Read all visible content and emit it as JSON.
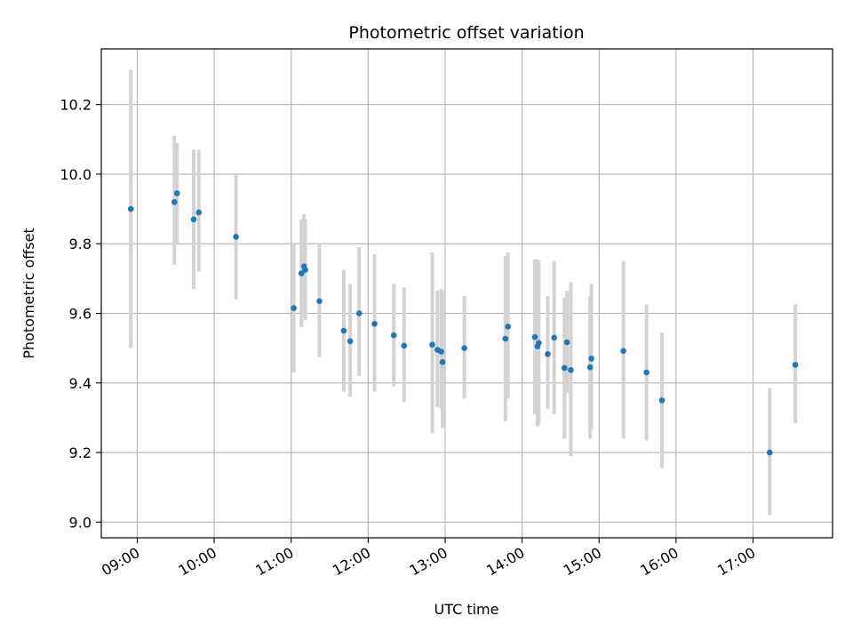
{
  "chart_data": {
    "type": "scatter",
    "title": "Photometric offset variation",
    "xlabel": "UTC time",
    "ylabel": "Photometric offset",
    "x_unit": "hours UTC",
    "xlim": [
      "08:32",
      "18:02"
    ],
    "ylim": [
      8.955,
      10.36
    ],
    "x_ticks": [
      "09:00",
      "10:00",
      "11:00",
      "12:00",
      "13:00",
      "14:00",
      "15:00",
      "16:00",
      "17:00"
    ],
    "y_ticks": [
      "9.0",
      "9.2",
      "9.4",
      "9.6",
      "9.8",
      "10.0",
      "10.2"
    ],
    "grid": true,
    "legend": "none",
    "colors": {
      "point": "#1f77b4",
      "error_bar": "#d3d3d3",
      "grid": "#b0b0b0"
    },
    "points": [
      {
        "time": "08:55",
        "value": 9.9,
        "err_low": 9.5,
        "err_high": 10.3
      },
      {
        "time": "09:29",
        "value": 9.92,
        "err_low": 9.74,
        "err_high": 10.11
      },
      {
        "time": "09:31",
        "value": 9.945,
        "err_low": 9.8,
        "err_high": 10.09
      },
      {
        "time": "09:44",
        "value": 9.87,
        "err_low": 9.67,
        "err_high": 10.07
      },
      {
        "time": "09:48",
        "value": 9.89,
        "err_low": 9.72,
        "err_high": 10.07
      },
      {
        "time": "10:17",
        "value": 9.82,
        "err_low": 9.64,
        "err_high": 10.0
      },
      {
        "time": "11:02",
        "value": 9.615,
        "err_low": 9.43,
        "err_high": 9.8
      },
      {
        "time": "11:08",
        "value": 9.715,
        "err_low": 9.56,
        "err_high": 9.87
      },
      {
        "time": "11:10",
        "value": 9.735,
        "err_low": 9.59,
        "err_high": 9.885
      },
      {
        "time": "11:11",
        "value": 9.725,
        "err_low": 9.58,
        "err_high": 9.87
      },
      {
        "time": "11:22",
        "value": 9.635,
        "err_low": 9.475,
        "err_high": 9.8
      },
      {
        "time": "11:41",
        "value": 9.55,
        "err_low": 9.375,
        "err_high": 9.725
      },
      {
        "time": "11:46",
        "value": 9.52,
        "err_low": 9.36,
        "err_high": 9.685
      },
      {
        "time": "11:53",
        "value": 9.6,
        "err_low": 9.42,
        "err_high": 9.79
      },
      {
        "time": "12:05",
        "value": 9.57,
        "err_low": 9.375,
        "err_high": 9.77
      },
      {
        "time": "12:20",
        "value": 9.537,
        "err_low": 9.39,
        "err_high": 9.685
      },
      {
        "time": "12:28",
        "value": 9.507,
        "err_low": 9.345,
        "err_high": 9.675
      },
      {
        "time": "12:50",
        "value": 9.51,
        "err_low": 9.255,
        "err_high": 9.775
      },
      {
        "time": "12:54",
        "value": 9.495,
        "err_low": 9.33,
        "err_high": 9.665
      },
      {
        "time": "12:57",
        "value": 9.49,
        "err_low": 9.325,
        "err_high": 9.67
      },
      {
        "time": "12:58",
        "value": 9.46,
        "err_low": 9.27,
        "err_high": 9.665
      },
      {
        "time": "13:15",
        "value": 9.5,
        "err_low": 9.355,
        "err_high": 9.65
      },
      {
        "time": "13:47",
        "value": 9.527,
        "err_low": 9.29,
        "err_high": 9.765
      },
      {
        "time": "13:49",
        "value": 9.562,
        "err_low": 9.355,
        "err_high": 9.775
      },
      {
        "time": "14:10",
        "value": 9.532,
        "err_low": 9.31,
        "err_high": 9.755
      },
      {
        "time": "14:12",
        "value": 9.505,
        "err_low": 9.275,
        "err_high": 9.755
      },
      {
        "time": "14:13",
        "value": 9.515,
        "err_low": 9.28,
        "err_high": 9.75
      },
      {
        "time": "14:20",
        "value": 9.483,
        "err_low": 9.325,
        "err_high": 9.65
      },
      {
        "time": "14:25",
        "value": 9.53,
        "err_low": 9.31,
        "err_high": 9.75
      },
      {
        "time": "14:33",
        "value": 9.443,
        "err_low": 9.24,
        "err_high": 9.645
      },
      {
        "time": "14:35",
        "value": 9.517,
        "err_low": 9.37,
        "err_high": 9.665
      },
      {
        "time": "14:38",
        "value": 9.437,
        "err_low": 9.19,
        "err_high": 9.69
      },
      {
        "time": "14:53",
        "value": 9.445,
        "err_low": 9.24,
        "err_high": 9.65
      },
      {
        "time": "14:54",
        "value": 9.47,
        "err_low": 9.265,
        "err_high": 9.685
      },
      {
        "time": "15:19",
        "value": 9.492,
        "err_low": 9.24,
        "err_high": 9.75
      },
      {
        "time": "15:37",
        "value": 9.43,
        "err_low": 9.235,
        "err_high": 9.625
      },
      {
        "time": "15:49",
        "value": 9.35,
        "err_low": 9.155,
        "err_high": 9.545
      },
      {
        "time": "17:13",
        "value": 9.2,
        "err_low": 9.02,
        "err_high": 9.385
      },
      {
        "time": "17:33",
        "value": 9.452,
        "err_low": 9.285,
        "err_high": 9.625
      }
    ]
  }
}
